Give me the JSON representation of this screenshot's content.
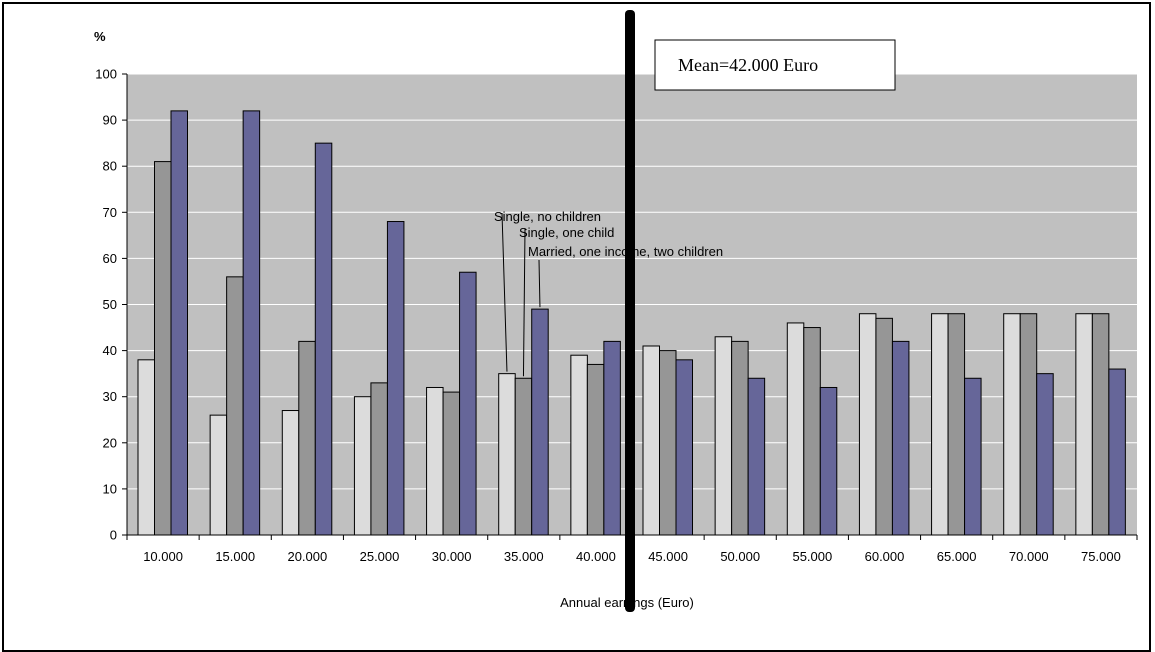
{
  "chart_data": {
    "type": "bar",
    "ylabel": "%",
    "xlabel": "Annual earnings (Euro)",
    "ylim": [
      0,
      100
    ],
    "yticks": [
      "0",
      "10",
      "20",
      "30",
      "40",
      "50",
      "60",
      "70",
      "80",
      "90",
      "100"
    ],
    "categories": [
      "10.000",
      "15.000",
      "20.000",
      "25.000",
      "30.000",
      "35.000",
      "40.000",
      "45.000",
      "50.000",
      "55.000",
      "60.000",
      "65.000",
      "70.000",
      "75.000"
    ],
    "series": [
      {
        "name": "Single, no children",
        "color": "#dcdcdc",
        "values": [
          38,
          26,
          27,
          30,
          32,
          35,
          39,
          41,
          43,
          46,
          48,
          48,
          48,
          48
        ]
      },
      {
        "name": "Single, one child",
        "color": "#969696",
        "values": [
          81,
          56,
          42,
          33,
          31,
          34,
          37,
          40,
          42,
          45,
          47,
          48,
          48,
          48
        ]
      },
      {
        "name": "Married, one income, two children",
        "color": "#666699",
        "values": [
          92,
          92,
          85,
          68,
          57,
          49,
          42,
          38,
          34,
          32,
          42,
          34,
          35,
          36
        ]
      }
    ],
    "annotations": [
      {
        "text": "Single, no children",
        "series": 0,
        "category": "35.000"
      },
      {
        "text": "Single, one child",
        "series": 1,
        "category": "35.000"
      },
      {
        "text": "Married, one income, two children",
        "series": 2,
        "category": "35.000"
      }
    ],
    "mean_label": "Mean=42.000 Euro",
    "mean_value": 42000,
    "plot_background": "#c0c0c0",
    "grid": true
  }
}
